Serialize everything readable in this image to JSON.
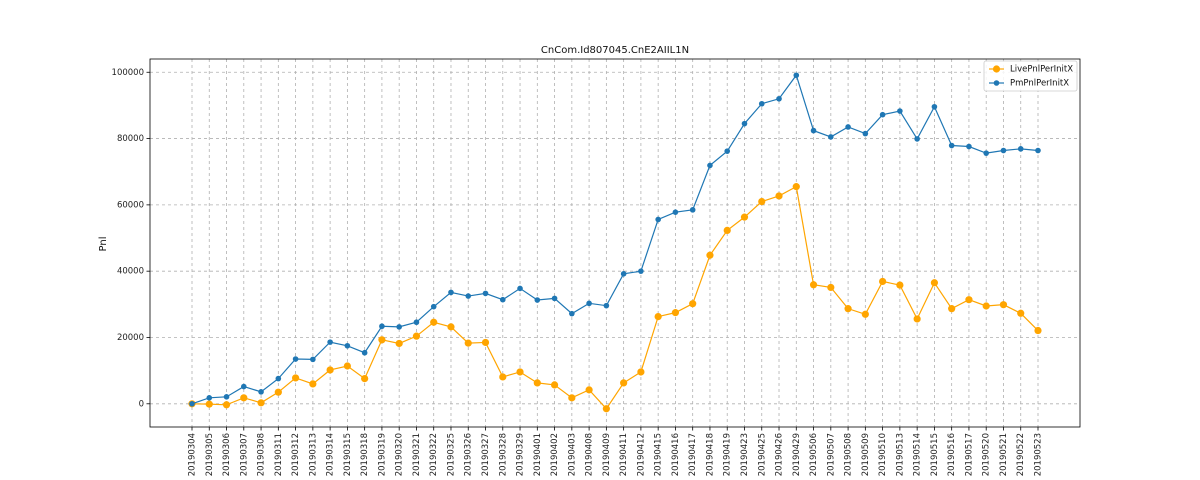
{
  "chart_data": {
    "type": "line",
    "title": "CnCom.Id807045.CnE2AIIL1N",
    "xlabel": "",
    "ylabel": "Pnl",
    "ylim": [
      -7000,
      104000
    ],
    "yticks": [
      0,
      20000,
      40000,
      60000,
      80000,
      100000
    ],
    "grid": true,
    "legend_position": "top-right",
    "categories": [
      "20190304",
      "20190305",
      "20190306",
      "20190307",
      "20190308",
      "20190311",
      "20190312",
      "20190313",
      "20190314",
      "20190315",
      "20190318",
      "20190319",
      "20190320",
      "20190321",
      "20190322",
      "20190325",
      "20190326",
      "20190327",
      "20190328",
      "20190329",
      "20190401",
      "20190402",
      "20190403",
      "20190408",
      "20190409",
      "20190411",
      "20190412",
      "20190415",
      "20190416",
      "20190417",
      "20190418",
      "20190419",
      "20190423",
      "20190425",
      "20190426",
      "20190429",
      "20190506",
      "20190507",
      "20190508",
      "20190509",
      "20190510",
      "20190513",
      "20190514",
      "20190515",
      "20190516",
      "20190517",
      "20190520",
      "20190521",
      "20190522",
      "20190523"
    ],
    "series": [
      {
        "name": "LivePnlPerInitX",
        "color": "#ffa500",
        "marker_size": 3.6,
        "values": [
          0,
          -100,
          -300,
          1800,
          300,
          3500,
          7800,
          6000,
          10200,
          11400,
          7600,
          19300,
          18200,
          20400,
          24600,
          23200,
          18300,
          18500,
          8100,
          9600,
          6300,
          5700,
          1800,
          4200,
          -1500,
          6300,
          9600,
          26300,
          27500,
          30200,
          44800,
          52300,
          56300,
          61000,
          62700,
          65500,
          35900,
          35100,
          28700,
          27000,
          36900,
          35800,
          25600,
          36500,
          28700,
          31400,
          29500,
          29900,
          27300,
          22100
        ]
      },
      {
        "name": "PmPnlPerInitX",
        "color": "#1f77b4",
        "marker_size": 2.8,
        "values": [
          0,
          1800,
          2100,
          5200,
          3600,
          7600,
          13500,
          13400,
          18600,
          17500,
          15400,
          23400,
          23200,
          24600,
          29300,
          33600,
          32500,
          33300,
          31400,
          34800,
          31300,
          31800,
          27200,
          30300,
          29600,
          39200,
          40000,
          55600,
          57800,
          58500,
          71900,
          76200,
          84500,
          90500,
          92000,
          99100,
          82400,
          80500,
          83500,
          81500,
          87200,
          88300,
          79900,
          89600,
          77900,
          77600,
          75600,
          76400,
          76900,
          76400
        ]
      }
    ]
  }
}
